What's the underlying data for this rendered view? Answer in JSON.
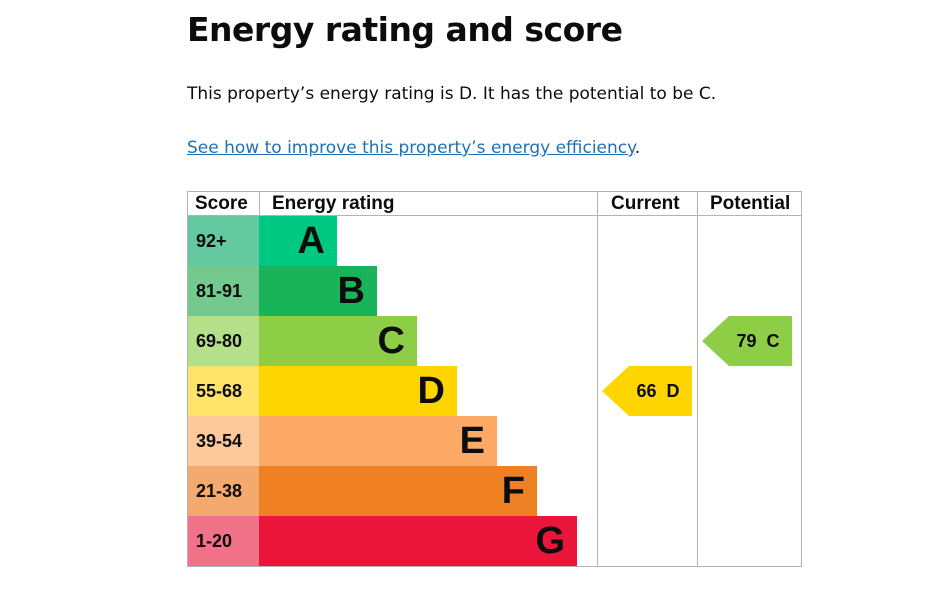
{
  "heading": "Energy rating and score",
  "summary": "This property’s energy rating is D. It has the potential to be C.",
  "link": {
    "text": "See how to improve this property’s energy efficiency",
    "suffix": "."
  },
  "table": {
    "headers": {
      "score": "Score",
      "rating": "Energy rating",
      "current": "Current",
      "potential": "Potential"
    },
    "bands": [
      {
        "score": "92+",
        "letter": "A",
        "color": "#00c781",
        "score_bg": "#64c9a0"
      },
      {
        "score": "81-91",
        "letter": "B",
        "color": "#19b459",
        "score_bg": "#74c98f"
      },
      {
        "score": "69-80",
        "letter": "C",
        "color": "#8dce46",
        "score_bg": "#b6df89"
      },
      {
        "score": "55-68",
        "letter": "D",
        "color": "#ffd500",
        "score_bg": "#ffe36a"
      },
      {
        "score": "39-54",
        "letter": "E",
        "color": "#fcaa65",
        "score_bg": "#fdc89a"
      },
      {
        "score": "21-38",
        "letter": "F",
        "color": "#ef8023",
        "score_bg": "#f4aa6e"
      },
      {
        "score": "1-20",
        "letter": "G",
        "color": "#e9153b",
        "score_bg": "#f07188"
      }
    ],
    "current": {
      "score": "66",
      "letter": "D",
      "color": "#ffd500"
    },
    "potential": {
      "score": "79",
      "letter": "C",
      "color": "#8dce46"
    }
  }
}
